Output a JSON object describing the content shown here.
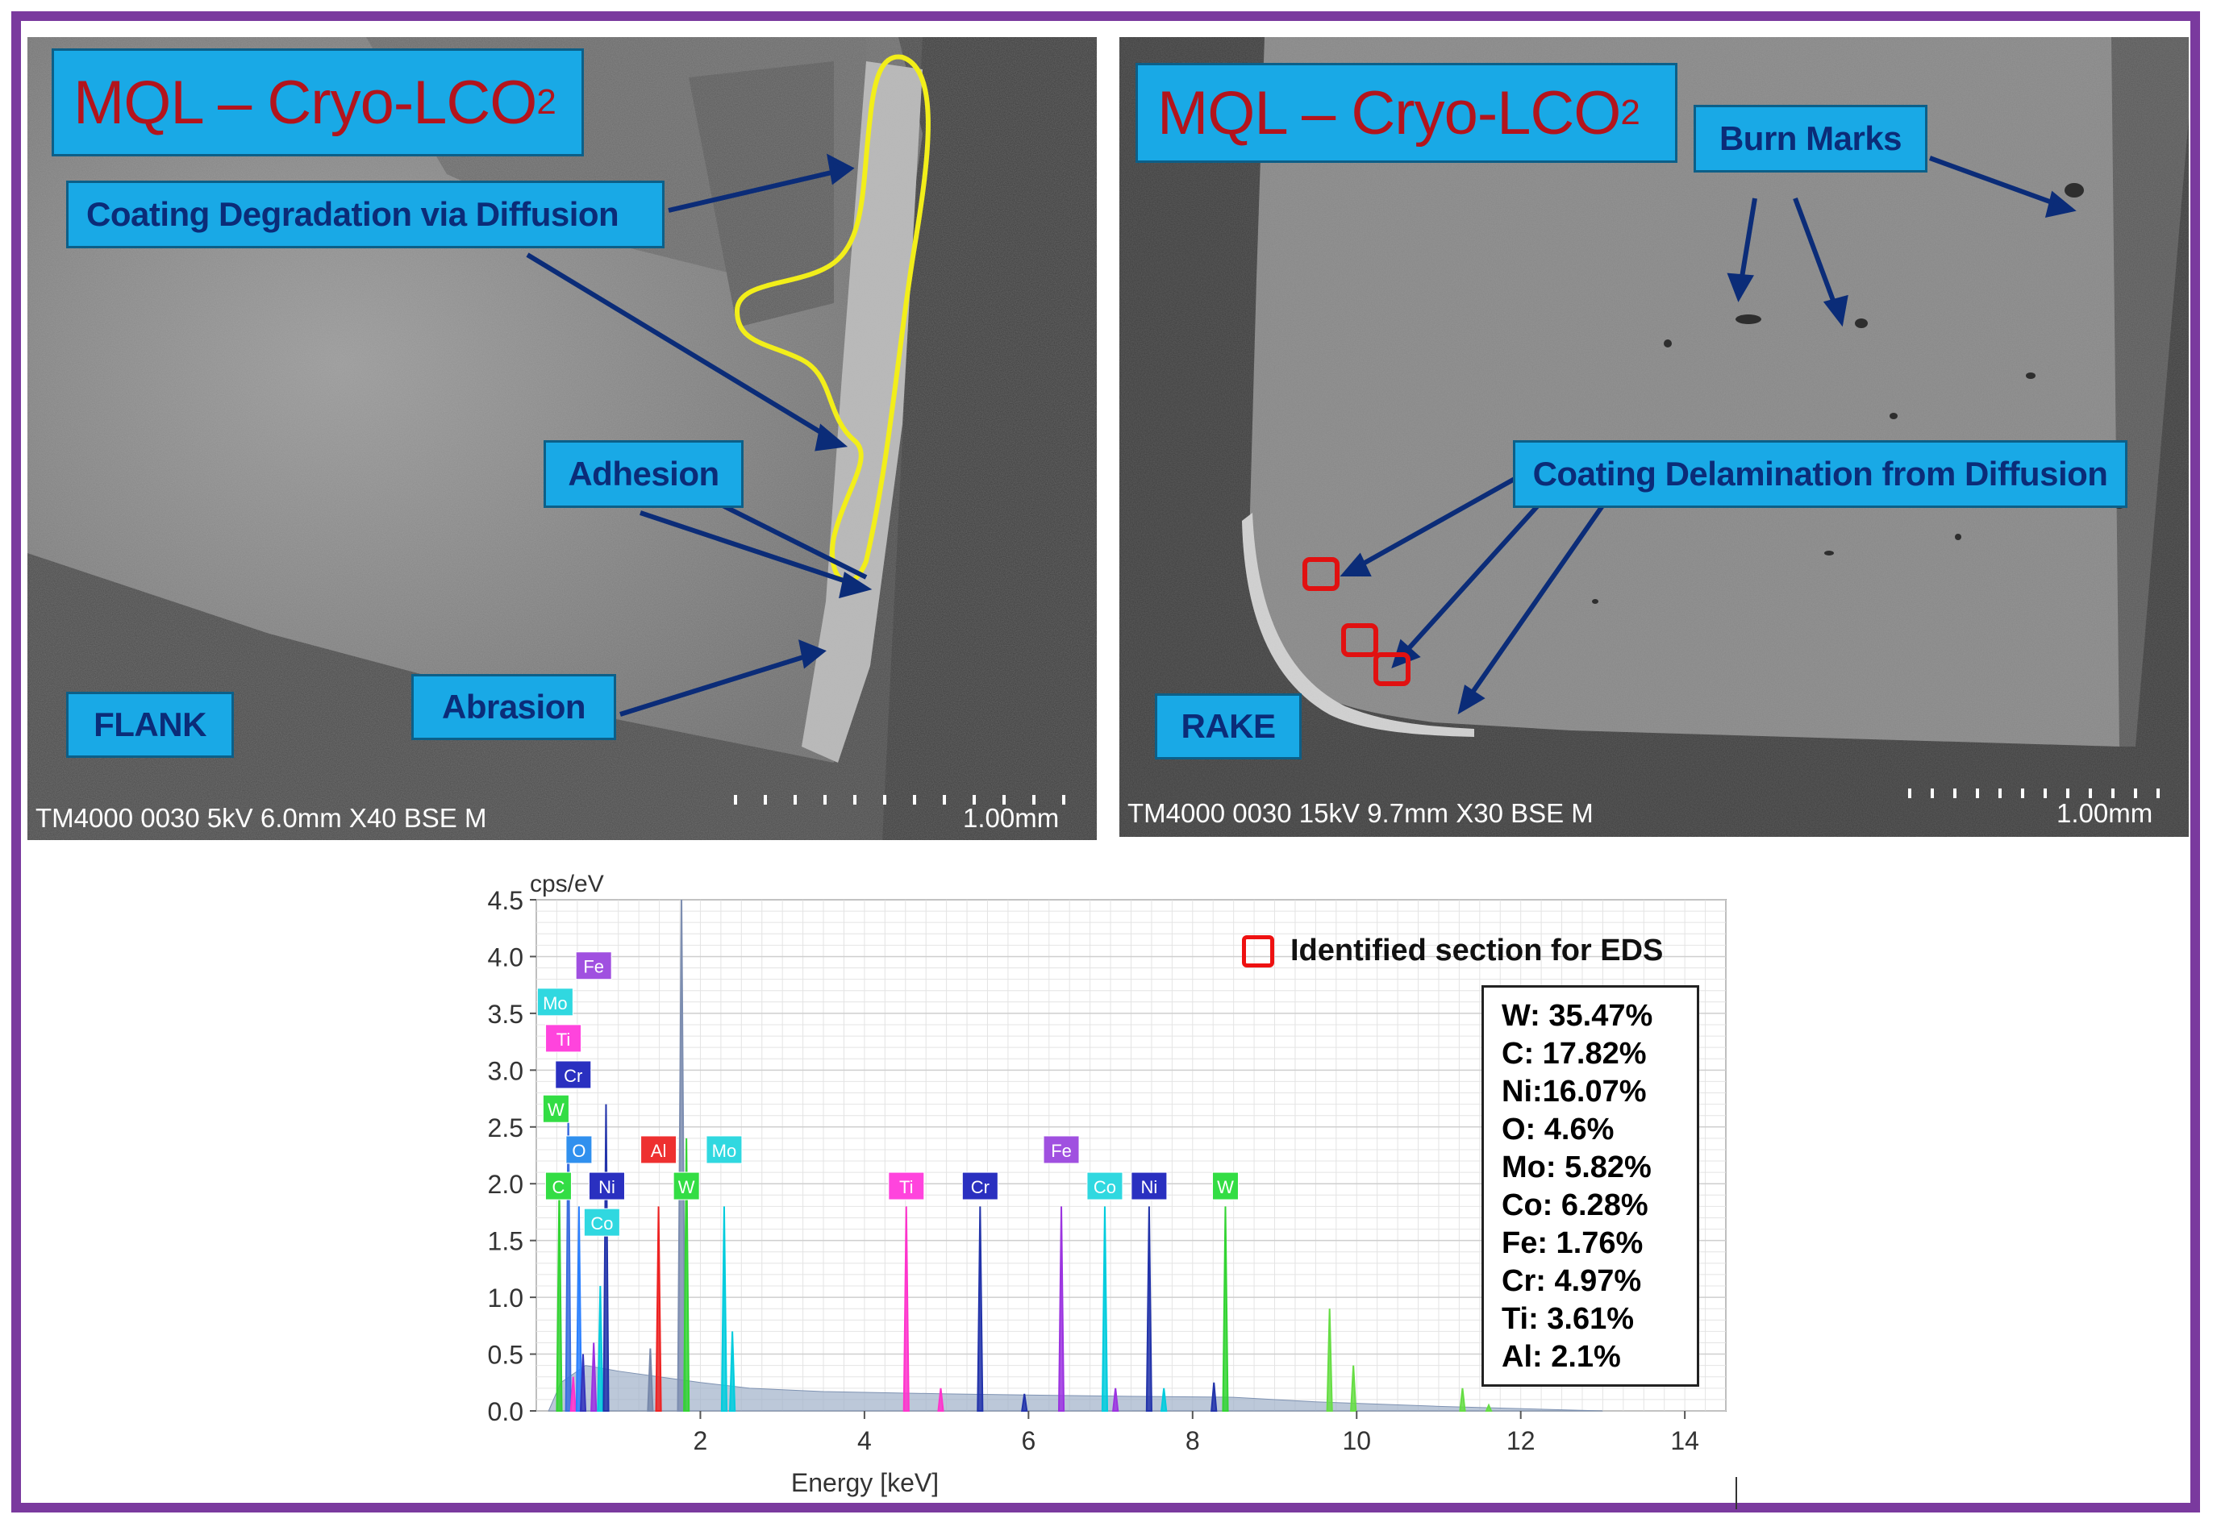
{
  "panels": {
    "flank": {
      "title_main": "MQL – Cryo-LCO",
      "title_sub": "2",
      "labels": {
        "coating_degradation": "Coating Degradation via Diffusion",
        "adhesion": "Adhesion",
        "abrasion": "Abrasion",
        "face": "FLANK"
      },
      "info": "TM4000 0030 5kV 6.0mm X40 BSE M",
      "scale": "1.00mm"
    },
    "rake": {
      "title_main": "MQL – Cryo-LCO",
      "title_sub": "2",
      "labels": {
        "burn_marks": "Burn Marks",
        "coating_delamination": "Coating Delamination from Diffusion",
        "face": "RAKE"
      },
      "info": "TM4000 0030 15kV 9.7mm X30 BSE M",
      "scale": "1.00mm"
    }
  },
  "colors": {
    "frame": "#7a3a9e",
    "label_bg": "#19a9e6",
    "label_text": "#0b2c78",
    "title_text": "#b3141c",
    "outline": "#f2ee1a",
    "eds_box": "#e11111",
    "arrow": "#0b2c78"
  },
  "legend": {
    "label": "Identified section for EDS"
  },
  "composition": [
    "W: 35.47%",
    "C: 17.82%",
    "Ni:16.07%",
    "O: 4.6%",
    "Mo: 5.82%",
    "Co: 6.28%",
    "Fe: 1.76%",
    "Cr: 4.97%",
    "Ti: 3.61%",
    "Al: 2.1%"
  ],
  "chart_data": {
    "type": "area",
    "ylabel": "cps/eV",
    "xlabel": "Energy [keV]",
    "xlim": [
      0,
      14.5
    ],
    "ylim": [
      0,
      4.5
    ],
    "x_ticks": [
      2,
      4,
      6,
      8,
      10,
      12,
      14
    ],
    "y_ticks": [
      0.0,
      0.5,
      1.0,
      1.5,
      2.0,
      2.5,
      3.0,
      3.5,
      4.0,
      4.5
    ],
    "grid": true,
    "peaks": [
      {
        "x": 0.28,
        "y": 2.0,
        "color": "#33d433"
      },
      {
        "x": 0.39,
        "y": 2.7,
        "color": "#3b6ddf"
      },
      {
        "x": 0.45,
        "y": 0.3,
        "color": "#ff33cc"
      },
      {
        "x": 0.52,
        "y": 1.8,
        "color": "#2a7fff"
      },
      {
        "x": 0.57,
        "y": 0.5,
        "color": "#3333bb"
      },
      {
        "x": 0.7,
        "y": 0.6,
        "color": "#9b33e0"
      },
      {
        "x": 0.78,
        "y": 1.1,
        "color": "#00ccdd"
      },
      {
        "x": 0.85,
        "y": 2.7,
        "color": "#2233aa"
      },
      {
        "x": 1.39,
        "y": 0.55,
        "color": "#7788aa"
      },
      {
        "x": 1.49,
        "y": 1.8,
        "color": "#ee2222"
      },
      {
        "x": 1.77,
        "y": 4.5,
        "color": "#7c8db0"
      },
      {
        "x": 1.83,
        "y": 2.4,
        "color": "#33d433"
      },
      {
        "x": 2.29,
        "y": 1.8,
        "color": "#00ccdd"
      },
      {
        "x": 2.39,
        "y": 0.7,
        "color": "#00ccdd"
      },
      {
        "x": 4.51,
        "y": 1.8,
        "color": "#ff33cc"
      },
      {
        "x": 4.93,
        "y": 0.2,
        "color": "#ff33cc"
      },
      {
        "x": 5.41,
        "y": 1.8,
        "color": "#2233aa"
      },
      {
        "x": 5.95,
        "y": 0.15,
        "color": "#2233aa"
      },
      {
        "x": 6.4,
        "y": 1.8,
        "color": "#9b33e0"
      },
      {
        "x": 6.93,
        "y": 1.8,
        "color": "#00ccdd"
      },
      {
        "x": 7.06,
        "y": 0.2,
        "color": "#9b33e0"
      },
      {
        "x": 7.47,
        "y": 1.8,
        "color": "#2233aa"
      },
      {
        "x": 7.65,
        "y": 0.2,
        "color": "#00ccdd"
      },
      {
        "x": 8.26,
        "y": 0.25,
        "color": "#2233aa"
      },
      {
        "x": 8.4,
        "y": 1.8,
        "color": "#33d433"
      },
      {
        "x": 9.67,
        "y": 0.9,
        "color": "#66dd44"
      },
      {
        "x": 9.96,
        "y": 0.4,
        "color": "#66dd44"
      },
      {
        "x": 11.29,
        "y": 0.2,
        "color": "#66dd44"
      },
      {
        "x": 11.61,
        "y": 0.05,
        "color": "#66dd44"
      }
    ],
    "element_tags": [
      {
        "label": "Fe",
        "x": 0.7,
        "y": 3.92,
        "color": "#a050e0"
      },
      {
        "label": "Mo",
        "x": 0.23,
        "y": 3.6,
        "color": "#30d8e0"
      },
      {
        "label": "Ti",
        "x": 0.33,
        "y": 3.28,
        "color": "#ff44dd"
      },
      {
        "label": "Cr",
        "x": 0.45,
        "y": 2.96,
        "color": "#2a30c0"
      },
      {
        "label": "W",
        "x": 0.24,
        "y": 2.66,
        "color": "#33dd44"
      },
      {
        "label": "O",
        "x": 0.52,
        "y": 2.3,
        "color": "#3090ee"
      },
      {
        "label": "C",
        "x": 0.27,
        "y": 1.98,
        "color": "#33dd44"
      },
      {
        "label": "Ni",
        "x": 0.86,
        "y": 1.98,
        "color": "#2a30c0"
      },
      {
        "label": "Co",
        "x": 0.8,
        "y": 1.66,
        "color": "#30d8e0"
      },
      {
        "label": "Al",
        "x": 1.49,
        "y": 2.3,
        "color": "#ee3030"
      },
      {
        "label": "Mo",
        "x": 2.29,
        "y": 2.3,
        "color": "#30d8e0"
      },
      {
        "label": "W",
        "x": 1.83,
        "y": 1.98,
        "color": "#33dd44"
      },
      {
        "label": "Ti",
        "x": 4.51,
        "y": 1.98,
        "color": "#ff44dd"
      },
      {
        "label": "Cr",
        "x": 5.41,
        "y": 1.98,
        "color": "#2a30c0"
      },
      {
        "label": "Fe",
        "x": 6.4,
        "y": 2.3,
        "color": "#a050e0"
      },
      {
        "label": "Co",
        "x": 6.93,
        "y": 1.98,
        "color": "#30d8e0"
      },
      {
        "label": "Ni",
        "x": 7.47,
        "y": 1.98,
        "color": "#2a30c0"
      },
      {
        "label": "W",
        "x": 8.4,
        "y": 1.98,
        "color": "#33dd44"
      }
    ]
  }
}
